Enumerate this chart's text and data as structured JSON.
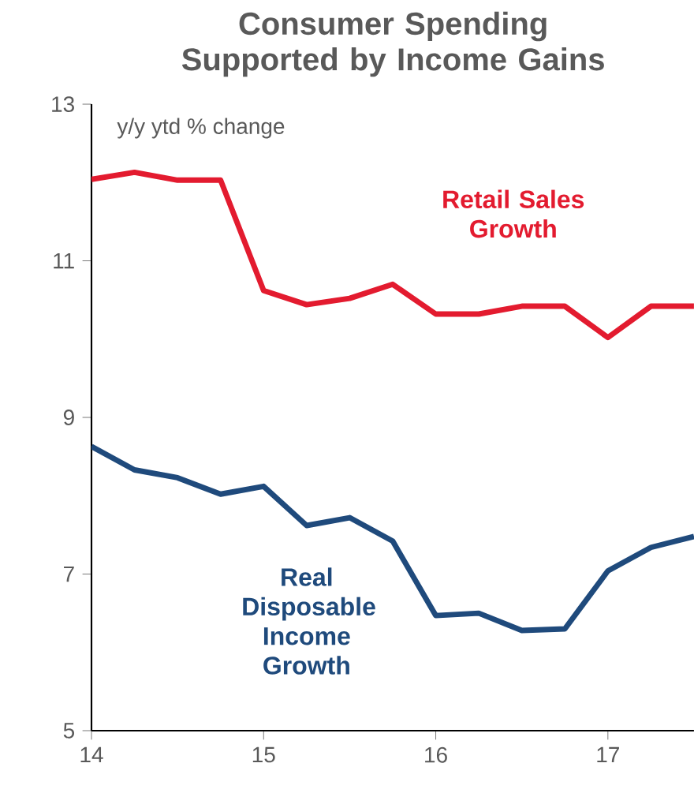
{
  "chart_data": {
    "type": "line",
    "title": "Consumer Spending Supported by Income Gains",
    "ylabel": "y/y ytd % change",
    "x": [
      14,
      14.25,
      14.5,
      14.75,
      15,
      15.25,
      15.5,
      15.75,
      16,
      16.25,
      16.5,
      16.75,
      17,
      17.25,
      17.5
    ],
    "series": [
      {
        "name": "Retail Sales Growth",
        "color": "#e31b2f",
        "values": [
          12.04,
          12.13,
          12.03,
          12.03,
          10.62,
          10.44,
          10.52,
          10.7,
          10.32,
          10.32,
          10.42,
          10.42,
          10.02,
          10.42,
          10.42
        ]
      },
      {
        "name": "Real Disposable Income Growth",
        "color": "#1f4a7c",
        "values": [
          8.63,
          8.33,
          8.23,
          8.02,
          8.12,
          7.62,
          7.72,
          7.42,
          6.47,
          6.5,
          6.28,
          6.3,
          7.04,
          7.34,
          7.48
        ]
      }
    ],
    "xlim": [
      14,
      17.5
    ],
    "ylim": [
      5,
      13
    ],
    "xticks": [
      14,
      15,
      16,
      17
    ],
    "yticks": [
      5,
      7,
      9,
      11,
      13
    ],
    "grid": false,
    "legend": false,
    "marker": "none",
    "line_style": "solid"
  }
}
